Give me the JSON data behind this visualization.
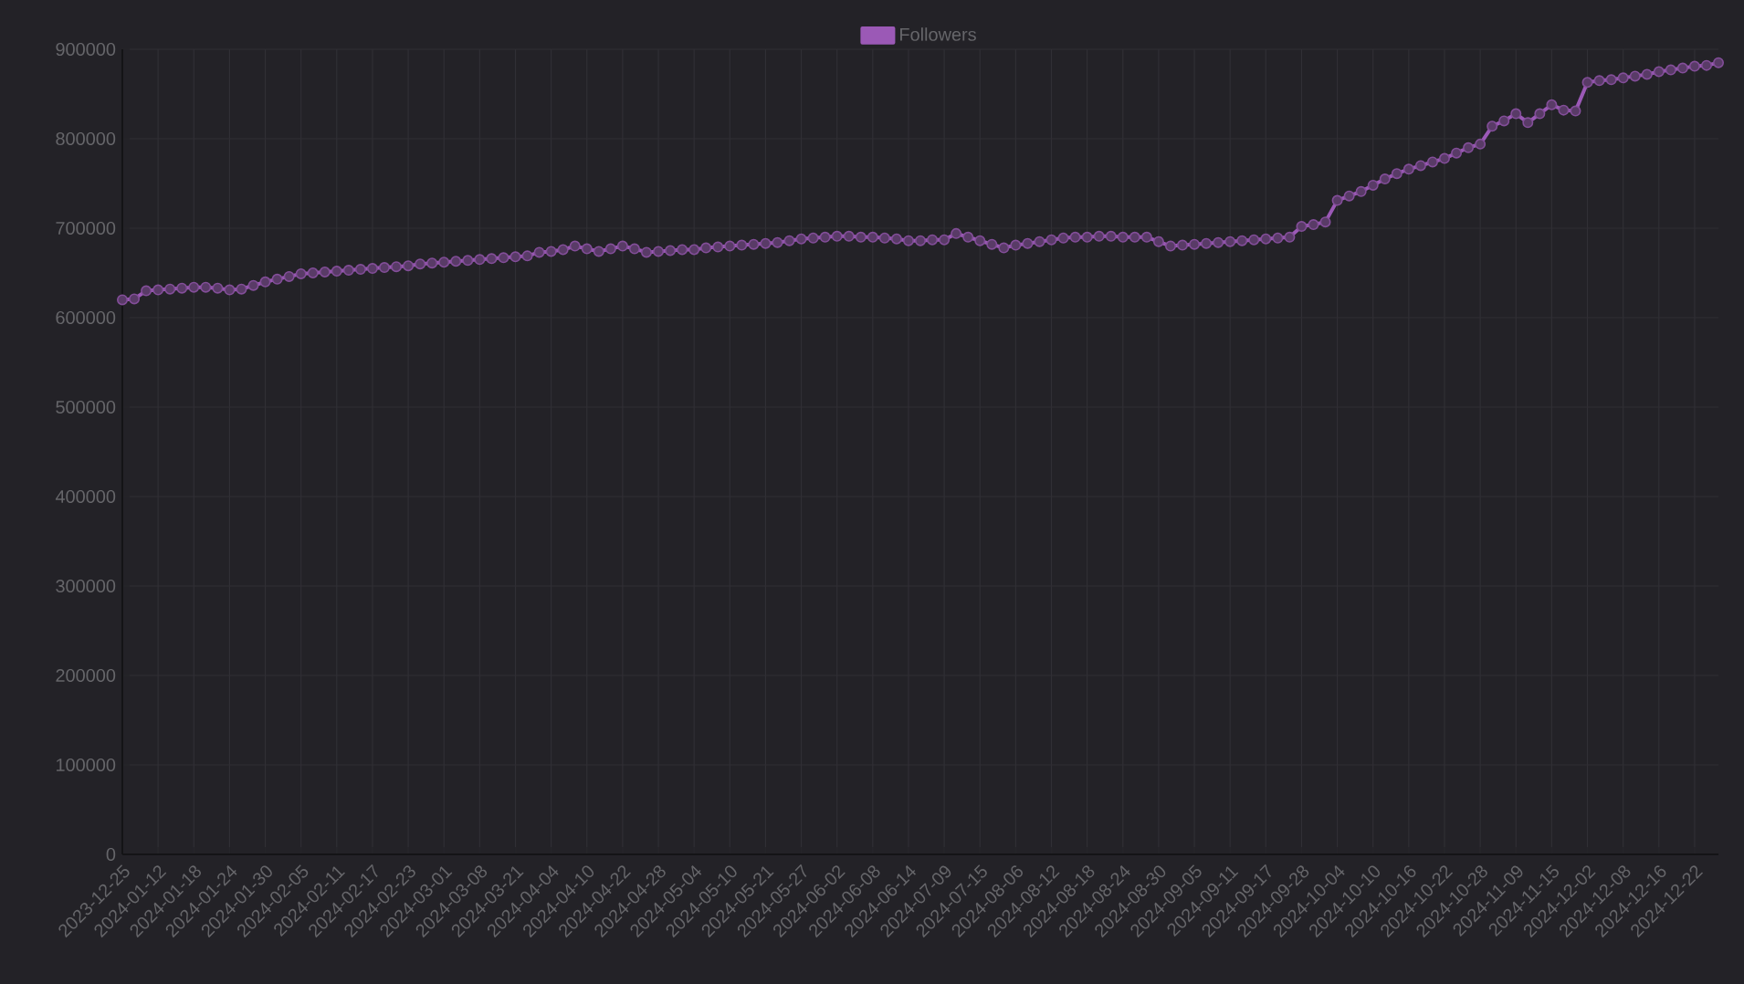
{
  "chart_data": {
    "type": "line",
    "categories": [
      "2023-12-25",
      null,
      null,
      "2024-01-12",
      null,
      null,
      "2024-01-18",
      null,
      null,
      "2024-01-24",
      null,
      null,
      "2024-01-30",
      null,
      null,
      "2024-02-05",
      null,
      null,
      "2024-02-11",
      null,
      null,
      "2024-02-17",
      null,
      null,
      "2024-02-23",
      null,
      null,
      "2024-03-01",
      null,
      null,
      "2024-03-08",
      null,
      null,
      "2024-03-21",
      null,
      null,
      "2024-04-04",
      null,
      null,
      "2024-04-10",
      null,
      null,
      "2024-04-22",
      null,
      null,
      "2024-04-28",
      null,
      null,
      "2024-05-04",
      null,
      null,
      "2024-05-10",
      null,
      null,
      "2024-05-21",
      null,
      null,
      "2024-05-27",
      null,
      null,
      "2024-06-02",
      null,
      null,
      "2024-06-08",
      null,
      null,
      "2024-06-14",
      null,
      null,
      "2024-07-09",
      null,
      null,
      "2024-07-15",
      null,
      null,
      "2024-08-06",
      null,
      null,
      "2024-08-12",
      null,
      null,
      "2024-08-18",
      null,
      null,
      "2024-08-24",
      null,
      null,
      "2024-08-30",
      null,
      null,
      "2024-09-05",
      null,
      null,
      "2024-09-11",
      null,
      null,
      "2024-09-17",
      null,
      null,
      "2024-09-28",
      null,
      null,
      "2024-10-04",
      null,
      null,
      "2024-10-10",
      null,
      null,
      "2024-10-16",
      null,
      null,
      "2024-10-22",
      null,
      null,
      "2024-10-28",
      null,
      null,
      "2024-11-09",
      null,
      null,
      "2024-11-15",
      null,
      null,
      "2024-12-02",
      null,
      null,
      "2024-12-08",
      null,
      null,
      "2024-12-16",
      null,
      null,
      "2024-12-22",
      null,
      null
    ],
    "series": [
      {
        "name": "Followers",
        "color": "#9b59b6",
        "values": [
          620000,
          621000,
          630000,
          631000,
          632000,
          633000,
          634000,
          634000,
          633000,
          631000,
          632000,
          636000,
          640000,
          643000,
          646000,
          649000,
          650000,
          651000,
          652000,
          653000,
          654000,
          655000,
          656000,
          657000,
          658000,
          660000,
          661000,
          662000,
          663000,
          664000,
          665000,
          666000,
          667000,
          668000,
          669000,
          673000,
          674000,
          676000,
          680000,
          677000,
          674000,
          677000,
          680000,
          677000,
          673000,
          674000,
          675000,
          676000,
          676000,
          678000,
          679000,
          680000,
          681000,
          682000,
          683000,
          684000,
          686000,
          688000,
          689000,
          690000,
          691000,
          691000,
          690000,
          690000,
          689000,
          688000,
          686000,
          686000,
          687000,
          687000,
          694000,
          690000,
          686000,
          682000,
          678000,
          681000,
          683000,
          685000,
          687000,
          689000,
          690000,
          690000,
          691000,
          691000,
          690000,
          690000,
          690000,
          685000,
          680000,
          681000,
          682000,
          683000,
          684000,
          685000,
          686000,
          687000,
          688000,
          689000,
          690000,
          702000,
          704000,
          707000,
          731000,
          736000,
          741000,
          748000,
          755000,
          761000,
          766000,
          770000,
          774000,
          778000,
          784000,
          790000,
          794000,
          814000,
          820000,
          828000,
          818000,
          828000,
          838000,
          832000,
          831000,
          863000,
          865000,
          866000,
          868000,
          870000,
          872000,
          875000,
          877000,
          879000,
          881000,
          882000,
          885000
        ]
      }
    ],
    "ylim": [
      0,
      900000
    ],
    "yticks": [
      0,
      100000,
      200000,
      300000,
      400000,
      500000,
      600000,
      700000,
      800000,
      900000
    ],
    "grid": true,
    "legend": "top",
    "marker": "circle",
    "line_style": "solid"
  }
}
